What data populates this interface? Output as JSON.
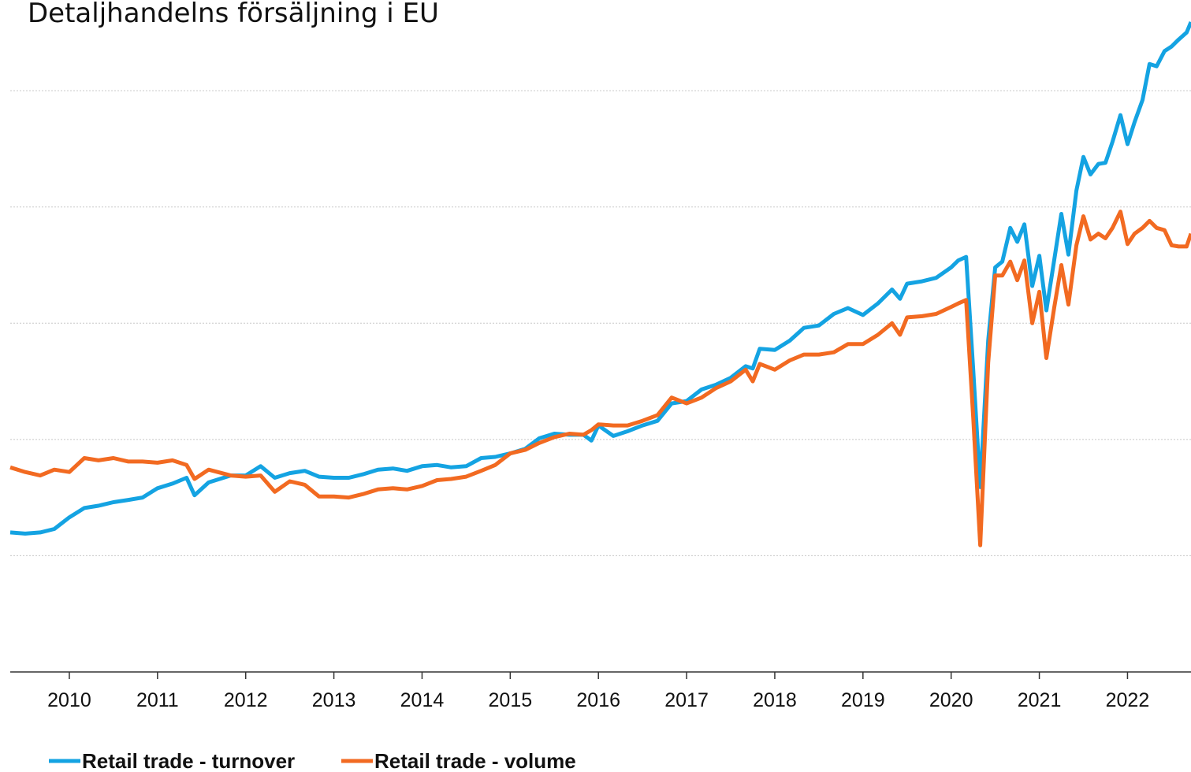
{
  "chart_data": {
    "type": "line",
    "title": "Detaljhandelns försäljning i EU",
    "x": [
      2009.33,
      2009.5,
      2009.67,
      2009.83,
      2010.0,
      2010.17,
      2010.33,
      2010.5,
      2010.67,
      2010.83,
      2011.0,
      2011.17,
      2011.33,
      2011.42,
      2011.58,
      2011.83,
      2012.0,
      2012.17,
      2012.33,
      2012.5,
      2012.67,
      2012.83,
      2013.0,
      2013.17,
      2013.33,
      2013.5,
      2013.67,
      2013.83,
      2014.0,
      2014.17,
      2014.33,
      2014.5,
      2014.67,
      2014.83,
      2015.0,
      2015.17,
      2015.33,
      2015.5,
      2015.67,
      2015.83,
      2015.92,
      2016.0,
      2016.17,
      2016.33,
      2016.5,
      2016.67,
      2016.83,
      2017.0,
      2017.17,
      2017.33,
      2017.5,
      2017.67,
      2017.75,
      2017.83,
      2018.0,
      2018.17,
      2018.33,
      2018.5,
      2018.67,
      2018.83,
      2019.0,
      2019.17,
      2019.33,
      2019.42,
      2019.5,
      2019.67,
      2019.83,
      2020.0,
      2020.08,
      2020.17,
      2020.25,
      2020.33,
      2020.42,
      2020.5,
      2020.58,
      2020.67,
      2020.75,
      2020.83,
      2020.92,
      2021.0,
      2021.08,
      2021.17,
      2021.25,
      2021.33,
      2021.42,
      2021.5,
      2021.58,
      2021.67,
      2021.75,
      2021.83,
      2021.92,
      2022.0,
      2022.08,
      2022.17,
      2022.25,
      2022.33,
      2022.42,
      2022.5,
      2022.58,
      2022.67,
      2022.72
    ],
    "series": [
      {
        "name": "Retail trade - turnover",
        "color": "#14a3e2",
        "values": [
          92.0,
          91.9,
          92.0,
          92.3,
          93.3,
          94.1,
          94.3,
          94.6,
          94.8,
          95.0,
          95.8,
          96.2,
          96.7,
          95.2,
          96.3,
          96.9,
          96.9,
          97.7,
          96.7,
          97.1,
          97.3,
          96.8,
          96.7,
          96.7,
          97.0,
          97.4,
          97.5,
          97.3,
          97.7,
          97.8,
          97.6,
          97.7,
          98.4,
          98.5,
          98.8,
          99.2,
          100.1,
          100.5,
          100.4,
          100.4,
          99.9,
          101.2,
          100.3,
          100.7,
          101.2,
          101.6,
          103.1,
          103.3,
          104.3,
          104.7,
          105.3,
          106.3,
          106.1,
          107.8,
          107.7,
          108.5,
          109.6,
          109.8,
          110.8,
          111.3,
          110.7,
          111.7,
          112.9,
          112.1,
          113.4,
          113.6,
          113.9,
          114.8,
          115.4,
          115.7,
          106.0,
          95.9,
          108.5,
          114.8,
          115.3,
          118.2,
          117.0,
          118.5,
          113.2,
          115.8,
          111.1,
          115.5,
          119.4,
          115.9,
          121.4,
          124.3,
          122.8,
          123.7,
          123.8,
          125.6,
          127.9,
          125.4,
          127.3,
          129.2,
          132.3,
          132.1,
          133.4,
          133.8,
          134.4,
          135.0,
          135.9
        ]
      },
      {
        "name": "Retail trade - volume",
        "color": "#f26a21",
        "values": [
          97.6,
          97.2,
          96.9,
          97.4,
          97.2,
          98.4,
          98.2,
          98.4,
          98.1,
          98.1,
          98.0,
          98.2,
          97.8,
          96.6,
          97.4,
          96.9,
          96.8,
          96.9,
          95.5,
          96.4,
          96.1,
          95.1,
          95.1,
          95.0,
          95.3,
          95.7,
          95.8,
          95.7,
          96.0,
          96.5,
          96.6,
          96.8,
          97.3,
          97.8,
          98.8,
          99.1,
          99.7,
          100.2,
          100.5,
          100.4,
          100.8,
          101.3,
          101.2,
          101.2,
          101.6,
          102.1,
          103.6,
          103.1,
          103.6,
          104.4,
          105.0,
          106.0,
          105.0,
          106.5,
          106.0,
          106.8,
          107.3,
          107.3,
          107.5,
          108.2,
          108.2,
          109.0,
          110.0,
          109.0,
          110.5,
          110.6,
          110.8,
          111.4,
          111.7,
          112.0,
          101.9,
          90.9,
          106.6,
          114.1,
          114.1,
          115.3,
          113.7,
          115.4,
          110.0,
          112.7,
          107.0,
          111.4,
          115.0,
          111.6,
          116.7,
          119.2,
          117.2,
          117.7,
          117.3,
          118.2,
          119.6,
          116.8,
          117.7,
          118.2,
          118.8,
          118.2,
          118.0,
          116.7,
          116.6,
          116.6,
          117.7
        ]
      }
    ],
    "xlim": [
      2009.33,
      2022.72
    ],
    "xticks": [
      2010,
      2011,
      2012,
      2013,
      2014,
      2015,
      2016,
      2017,
      2018,
      2019,
      2020,
      2021,
      2022
    ],
    "ylim": [
      80,
      137.8
    ],
    "yticks": [
      80,
      90,
      100,
      110,
      120,
      130
    ],
    "grid": true
  }
}
